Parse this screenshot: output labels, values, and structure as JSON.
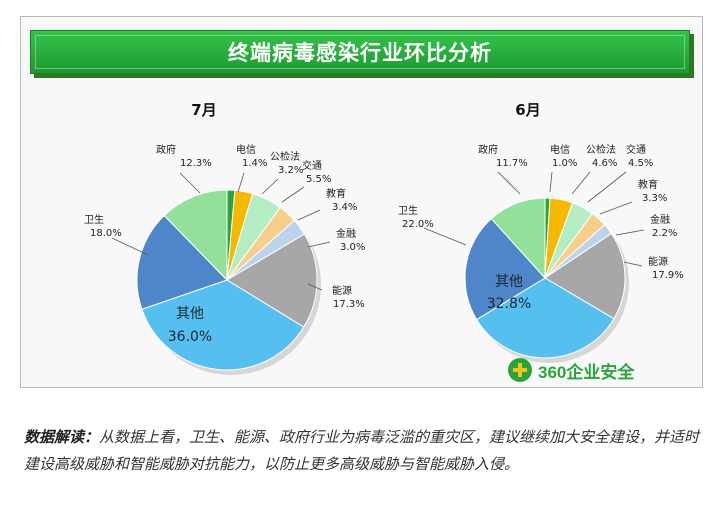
{
  "title": "终端病毒感染行业环比分析",
  "colors": {
    "banner": "#25a83b",
    "政府": "#93e09a",
    "电信": "#2aa53c",
    "公检法": "#f7b800",
    "交通": "#b4edc3",
    "教育": "#f6cf8a",
    "金融": "#bcd3ec",
    "能源": "#a7a7a7",
    "其他": "#55bff0",
    "卫生": "#4f86c9"
  },
  "chart_data": [
    {
      "type": "pie",
      "title": "7月",
      "slices": [
        {
          "name": "电信",
          "value": 1.4,
          "label": "1.4%"
        },
        {
          "name": "公检法",
          "value": 3.2,
          "label": "3.2%"
        },
        {
          "name": "交通",
          "value": 5.5,
          "label": "5.5%"
        },
        {
          "name": "教育",
          "value": 3.4,
          "label": "3.4%"
        },
        {
          "name": "金融",
          "value": 3.0,
          "label": "3.0%"
        },
        {
          "name": "能源",
          "value": 17.3,
          "label": "17.3%"
        },
        {
          "name": "其他",
          "value": 36.0,
          "label": "36.0%"
        },
        {
          "name": "卫生",
          "value": 18.0,
          "label": "18.0%"
        },
        {
          "name": "政府",
          "value": 12.3,
          "label": "12.3%"
        }
      ]
    },
    {
      "type": "pie",
      "title": "6月",
      "slices": [
        {
          "name": "电信",
          "value": 1.0,
          "label": "1.0%"
        },
        {
          "name": "公检法",
          "value": 4.6,
          "label": "4.6%"
        },
        {
          "name": "交通",
          "value": 4.5,
          "label": "4.5%"
        },
        {
          "name": "教育",
          "value": 3.3,
          "label": "3.3%"
        },
        {
          "name": "金融",
          "value": 2.2,
          "label": "2.2%"
        },
        {
          "name": "能源",
          "value": 17.9,
          "label": "17.9%"
        },
        {
          "name": "其他",
          "value": 32.8,
          "label": "32.8%"
        },
        {
          "name": "卫生",
          "value": 22.0,
          "label": "22.0%"
        },
        {
          "name": "政府",
          "value": 11.7,
          "label": "11.7%"
        }
      ]
    }
  ],
  "logo": {
    "text": "360企业安全",
    "icon": "cross-circle-icon"
  },
  "caption": {
    "label": "数据解读：",
    "body": "从数据上看，卫生、能源、政府行业为病毒泛滥的重灾区，建议继续加大安全建设，并适时建设高级威胁和智能威胁对抗能力，以防止更多高级威胁与智能威胁入侵。"
  }
}
